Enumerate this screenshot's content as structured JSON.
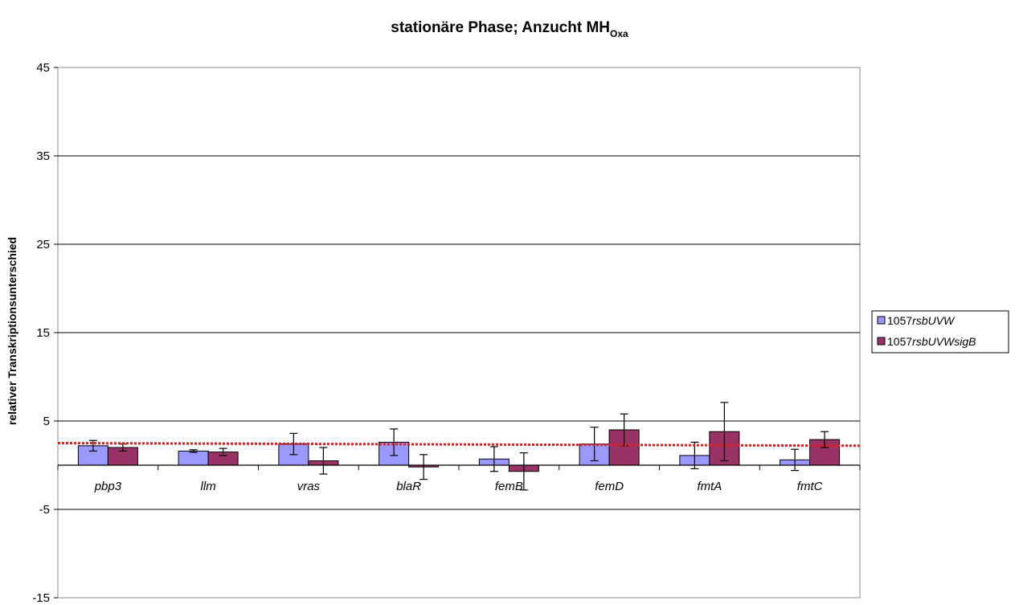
{
  "chart_data": {
    "type": "bar",
    "title": {
      "main": "stationäre Phase; Anzucht MH",
      "subscript": "Oxa"
    },
    "ylabel": "relativer Transkriptionsunterschied",
    "xlabel": "",
    "ylim": [
      -15,
      45
    ],
    "yticks": [
      -15,
      -5,
      5,
      15,
      25,
      35,
      45
    ],
    "grid": true,
    "legend_position": "right",
    "categories": [
      "pbp3",
      "llm",
      "vras",
      "blaR",
      "femB",
      "femD",
      "fmtA",
      "fmtC"
    ],
    "series": [
      {
        "name_prefix": "1057",
        "name_italic": "rsbUVW",
        "color": "#9999ff",
        "values": [
          2.2,
          1.6,
          2.4,
          2.6,
          0.7,
          2.4,
          1.1,
          0.6
        ],
        "error": [
          0.6,
          0.15,
          1.2,
          1.5,
          1.4,
          1.9,
          1.5,
          1.2
        ]
      },
      {
        "name_prefix": "1057",
        "name_italic": "rsbUVWsigB",
        "color": "#993366",
        "values": [
          2.0,
          1.5,
          0.5,
          -0.2,
          -0.7,
          4.0,
          3.8,
          2.9
        ],
        "error": [
          0.4,
          0.4,
          1.5,
          1.4,
          2.1,
          1.8,
          3.3,
          0.9
        ]
      }
    ],
    "reference_line": {
      "color": "#e02020",
      "style": "dotted",
      "y_start": 2.5,
      "y_end": 2.2
    }
  }
}
